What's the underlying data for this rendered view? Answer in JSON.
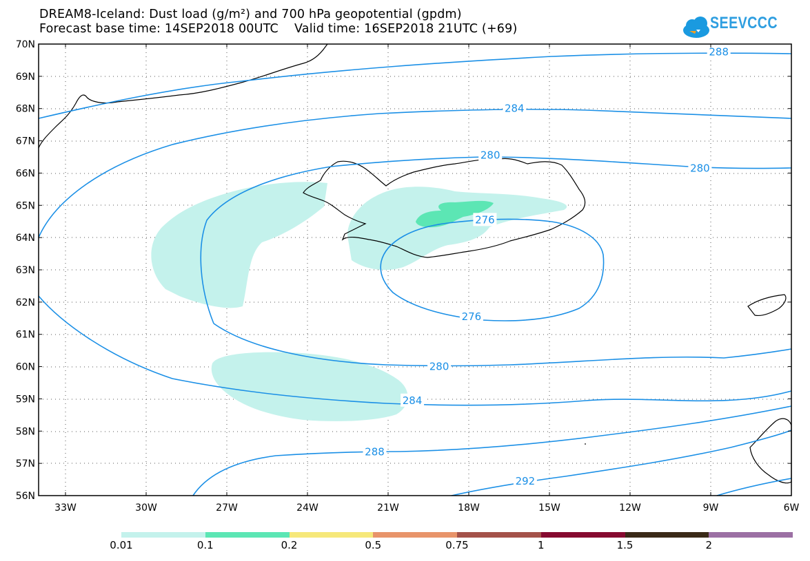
{
  "header": {
    "title_line1": "DREAM8-Iceland: Dust load (g/m²) and 700 hPa geopotential (gpdm)",
    "title_line2": "Forecast base time: 14SEP2018 00UTC    Valid time: 16SEP2018 21UTC (+69)"
  },
  "logo": {
    "text": "SEEVCCC",
    "icon": "cloud-icon",
    "color": "#1a9ae0"
  },
  "map": {
    "projection": "lat-lon",
    "lon_range": [
      -34,
      -6
    ],
    "lat_range": [
      56,
      70
    ],
    "lat_labels": [
      "70N",
      "69N",
      "68N",
      "67N",
      "66N",
      "65N",
      "64N",
      "63N",
      "62N",
      "61N",
      "60N",
      "59N",
      "58N",
      "57N",
      "56N"
    ],
    "lon_labels": [
      "33W",
      "30W",
      "27W",
      "24W",
      "21W",
      "18W",
      "15W",
      "12W",
      "9W",
      "6W"
    ],
    "grid": "dotted",
    "contour_color": "#1a8fe6",
    "contour_labels": [
      {
        "text": "288",
        "lon": -8.7,
        "lat": 69.75
      },
      {
        "text": "284",
        "lon": -16.3,
        "lat": 68.0
      },
      {
        "text": "280",
        "lon": -17.2,
        "lat": 66.55
      },
      {
        "text": "280",
        "lon": -9.4,
        "lat": 66.15
      },
      {
        "text": "276",
        "lon": -17.4,
        "lat": 64.55
      },
      {
        "text": "276",
        "lon": -17.9,
        "lat": 61.55
      },
      {
        "text": "280",
        "lon": -19.1,
        "lat": 60.0
      },
      {
        "text": "284",
        "lon": -20.1,
        "lat": 58.95
      },
      {
        "text": "288",
        "lon": -21.5,
        "lat": 57.35
      },
      {
        "text": "292",
        "lon": -15.9,
        "lat": 56.45
      }
    ]
  },
  "colorbar": {
    "colors": [
      "#c4f2ec",
      "#5ce6b4",
      "#f6e87a",
      "#e8946a",
      "#a4524a",
      "#860a30",
      "#3a2a18",
      "#9c70a4"
    ],
    "labels": [
      "0.01",
      "0.1",
      "0.2",
      "0.5",
      "0.75",
      "1",
      "1.5",
      "2"
    ]
  }
}
